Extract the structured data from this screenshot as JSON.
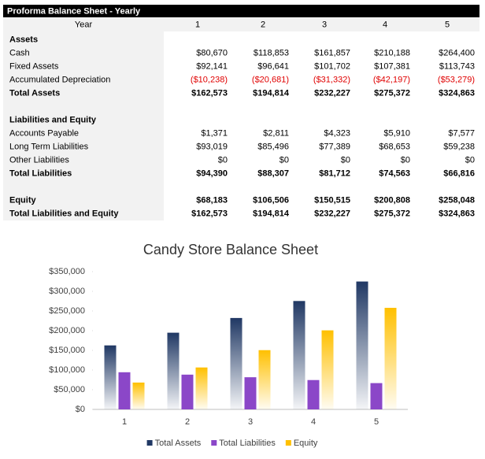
{
  "table": {
    "title": "Proforma Balance Sheet - Yearly",
    "header": [
      "Year",
      "1",
      "2",
      "3",
      "4",
      "5"
    ],
    "sections": [
      {
        "rows": [
          {
            "cells": [
              "Assets"
            ],
            "bold": true
          },
          {
            "cells": [
              "Cash",
              "$80,670",
              "$118,853",
              "$161,857",
              "$210,188",
              "$264,400"
            ],
            "bold": false
          },
          {
            "cells": [
              "Fixed Assets",
              "$92,141",
              "$96,641",
              "$101,702",
              "$107,381",
              "$113,743"
            ],
            "bold": false
          },
          {
            "cells": [
              "Accumulated Depreciation",
              "($10,238)",
              "($20,681)",
              "($31,332)",
              "($42,197)",
              "($53,279)"
            ],
            "bold": false
          },
          {
            "cells": [
              "Total Assets",
              "$162,573",
              "$194,814",
              "$232,227",
              "$275,372",
              "$324,863"
            ],
            "bold": true
          }
        ]
      },
      {
        "rows": [
          {
            "cells": [
              "Liabilities and Equity"
            ],
            "bold": true
          },
          {
            "cells": [
              "Accounts Payable",
              "$1,371",
              "$2,811",
              "$4,323",
              "$5,910",
              "$7,577"
            ],
            "bold": false
          },
          {
            "cells": [
              "Long Term Liabilities",
              "$93,019",
              "$85,496",
              "$77,389",
              "$68,653",
              "$59,238"
            ],
            "bold": false
          },
          {
            "cells": [
              "Other Liabilities",
              "$0",
              "$0",
              "$0",
              "$0",
              "$0"
            ],
            "bold": false
          },
          {
            "cells": [
              "Total Liabilities",
              "$94,390",
              "$88,307",
              "$81,712",
              "$74,563",
              "$66,816"
            ],
            "bold": true
          }
        ]
      },
      {
        "rows": [
          {
            "cells": [
              "Equity",
              "$68,183",
              "$106,506",
              "$150,515",
              "$200,808",
              "$258,048"
            ],
            "bold": true
          },
          {
            "cells": [
              "Total Liabilities and Equity",
              "$162,573",
              "$194,814",
              "$232,227",
              "$275,372",
              "$324,863"
            ],
            "bold": true
          }
        ]
      }
    ],
    "negative_color": "#e00000"
  },
  "chart_data": {
    "type": "bar",
    "title": "Candy Store Balance Sheet",
    "categories": [
      "1",
      "2",
      "3",
      "4",
      "5"
    ],
    "series": [
      {
        "name": "Total Assets",
        "color": "#203864",
        "gradient": true,
        "values": [
          162573,
          194814,
          232227,
          275372,
          324863
        ]
      },
      {
        "name": "Total Liabilities",
        "color": "#8b47c8",
        "gradient": false,
        "values": [
          94390,
          88307,
          81712,
          74563,
          66816
        ]
      },
      {
        "name": "Equity",
        "color": "#ffc000",
        "gradient": true,
        "values": [
          68183,
          106506,
          150515,
          200808,
          258048
        ]
      }
    ],
    "ylim": [
      0,
      350000
    ],
    "yticks": [
      {
        "value": 0,
        "label": "$0"
      },
      {
        "value": 50000,
        "label": "$50,000"
      },
      {
        "value": 100000,
        "label": "$100,000"
      },
      {
        "value": 150000,
        "label": "$150,000"
      },
      {
        "value": 200000,
        "label": "$200,000"
      },
      {
        "value": 250000,
        "label": "$250,000"
      },
      {
        "value": 300000,
        "label": "$300,000"
      },
      {
        "value": 350000,
        "label": "$350,000"
      }
    ],
    "grid": false,
    "legend": "bottom"
  }
}
